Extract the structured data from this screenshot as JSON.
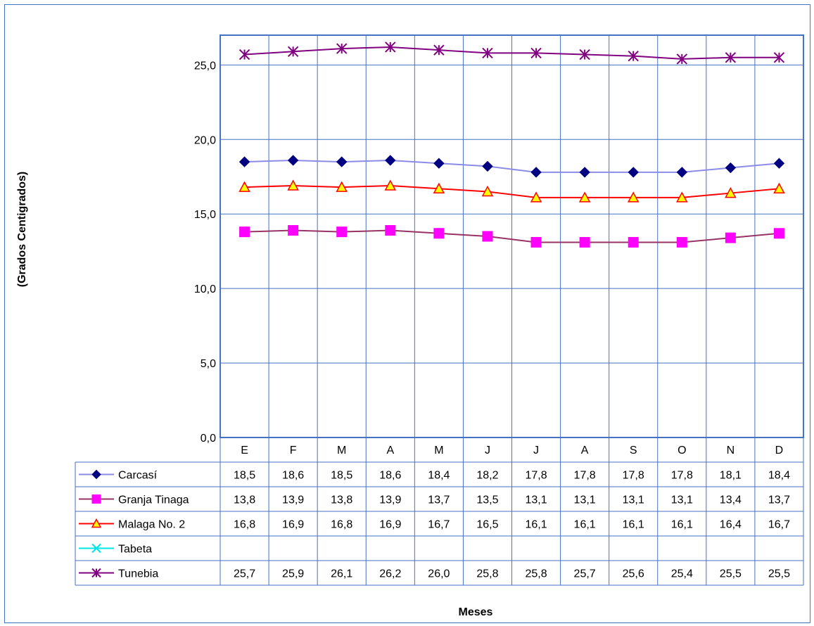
{
  "chart_data": {
    "type": "line",
    "title": "",
    "ylabel": "(Grados Centigrados)",
    "xlabel": "Meses",
    "ylim": [
      0,
      27
    ],
    "y_ticks": [
      0,
      5,
      10,
      15,
      20,
      25
    ],
    "y_tick_labels": [
      "0,0",
      "5,0",
      "10,0",
      "15,0",
      "20,0",
      "25,0"
    ],
    "grid": true,
    "legend": "data-table",
    "categories": [
      "E",
      "F",
      "M",
      "A",
      "M",
      "J",
      "J",
      "A",
      "S",
      "O",
      "N",
      "D"
    ],
    "series": [
      {
        "name": "Carcasí",
        "color": "#8c8ce8",
        "marker": "diamond",
        "marker_fill": "#000080",
        "values": [
          18.5,
          18.6,
          18.5,
          18.6,
          18.4,
          18.2,
          17.8,
          17.8,
          17.8,
          17.8,
          18.1,
          18.4
        ],
        "labels": [
          "18,5",
          "18,6",
          "18,5",
          "18,6",
          "18,4",
          "18,2",
          "17,8",
          "17,8",
          "17,8",
          "17,8",
          "18,1",
          "18,4"
        ]
      },
      {
        "name": "Granja Tinaga",
        "color": "#993366",
        "marker": "square",
        "marker_fill": "#ff00ff",
        "values": [
          13.8,
          13.9,
          13.8,
          13.9,
          13.7,
          13.5,
          13.1,
          13.1,
          13.1,
          13.1,
          13.4,
          13.7
        ],
        "labels": [
          "13,8",
          "13,9",
          "13,8",
          "13,9",
          "13,7",
          "13,5",
          "13,1",
          "13,1",
          "13,1",
          "13,1",
          "13,4",
          "13,7"
        ]
      },
      {
        "name": "Malaga No. 2",
        "color": "#ff0000",
        "marker": "triangle",
        "marker_fill": "#ffff00",
        "values": [
          16.8,
          16.9,
          16.8,
          16.9,
          16.7,
          16.5,
          16.1,
          16.1,
          16.1,
          16.1,
          16.4,
          16.7
        ],
        "labels": [
          "16,8",
          "16,9",
          "16,8",
          "16,9",
          "16,7",
          "16,5",
          "16,1",
          "16,1",
          "16,1",
          "16,1",
          "16,4",
          "16,7"
        ]
      },
      {
        "name": "Tabeta",
        "color": "#00e5e5",
        "marker": "x",
        "marker_fill": "#00e5e5",
        "values": [
          null,
          null,
          null,
          null,
          null,
          null,
          null,
          null,
          null,
          null,
          null,
          null
        ],
        "labels": [
          "",
          "",
          "",
          "",
          "",
          "",
          "",
          "",
          "",
          "",
          "",
          ""
        ]
      },
      {
        "name": "Tunebia",
        "color": "#800080",
        "marker": "star",
        "marker_fill": "#800080",
        "values": [
          25.7,
          25.9,
          26.1,
          26.2,
          26.0,
          25.8,
          25.8,
          25.7,
          25.6,
          25.4,
          25.5,
          25.5
        ],
        "labels": [
          "25,7",
          "25,9",
          "26,1",
          "26,2",
          "26,0",
          "25,8",
          "25,8",
          "25,7",
          "25,6",
          "25,4",
          "25,5",
          "25,5"
        ]
      }
    ]
  }
}
